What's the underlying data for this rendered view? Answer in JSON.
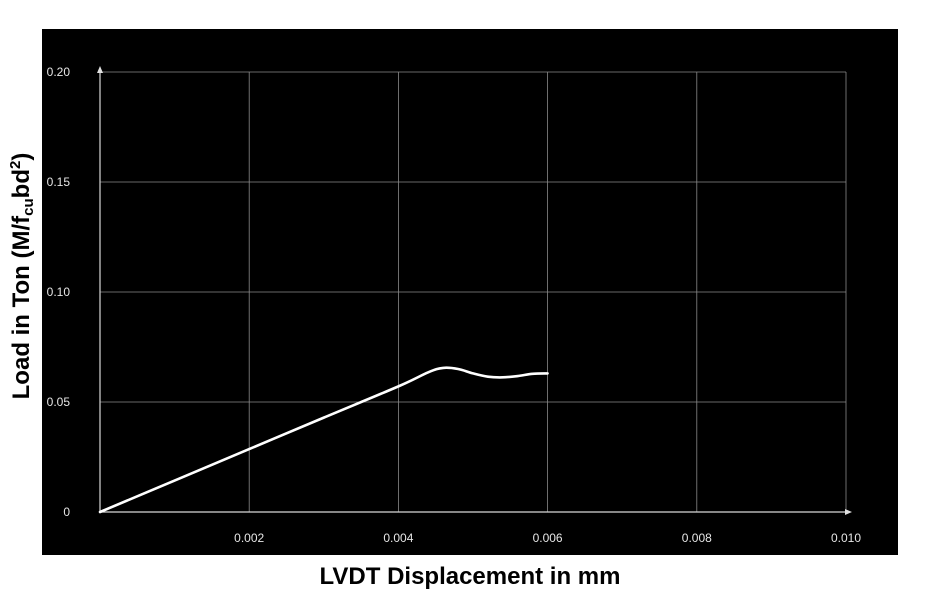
{
  "chart_data": {
    "type": "line",
    "xlabel": "LVDT Displacement in mm",
    "ylabel": {
      "prefix": "Load in Ton (M/f",
      "sub": "cu",
      "mid": "bd",
      "sup": "2",
      "suffix": ")"
    },
    "xlim": [
      0,
      0.01
    ],
    "ylim": [
      0,
      0.2
    ],
    "x_ticks": [
      {
        "value": 0.002,
        "label": "0.002"
      },
      {
        "value": 0.004,
        "label": "0.004"
      },
      {
        "value": 0.006,
        "label": "0.006"
      },
      {
        "value": 0.008,
        "label": "0.008"
      },
      {
        "value": 0.01,
        "label": "0.010"
      }
    ],
    "y_ticks": [
      {
        "value": 0,
        "label": "0"
      },
      {
        "value": 0.05,
        "label": "0.05"
      },
      {
        "value": 0.1,
        "label": "0.10"
      },
      {
        "value": 0.15,
        "label": "0.15"
      },
      {
        "value": 0.2,
        "label": "0.20"
      }
    ],
    "grid": true,
    "colors": {
      "background": "#000000",
      "series": "#ffffff",
      "grid": "#8a8a8a"
    },
    "series": [
      {
        "x": [
          0,
          0.001,
          0.002,
          0.003,
          0.004,
          0.0044,
          0.0046,
          0.0048,
          0.005,
          0.0052,
          0.0054,
          0.0056,
          0.0058,
          0.006
        ],
        "y": [
          0,
          0.0143,
          0.0286,
          0.0429,
          0.0571,
          0.0635,
          0.0655,
          0.065,
          0.063,
          0.0615,
          0.0612,
          0.0618,
          0.0628,
          0.063
        ]
      }
    ]
  }
}
